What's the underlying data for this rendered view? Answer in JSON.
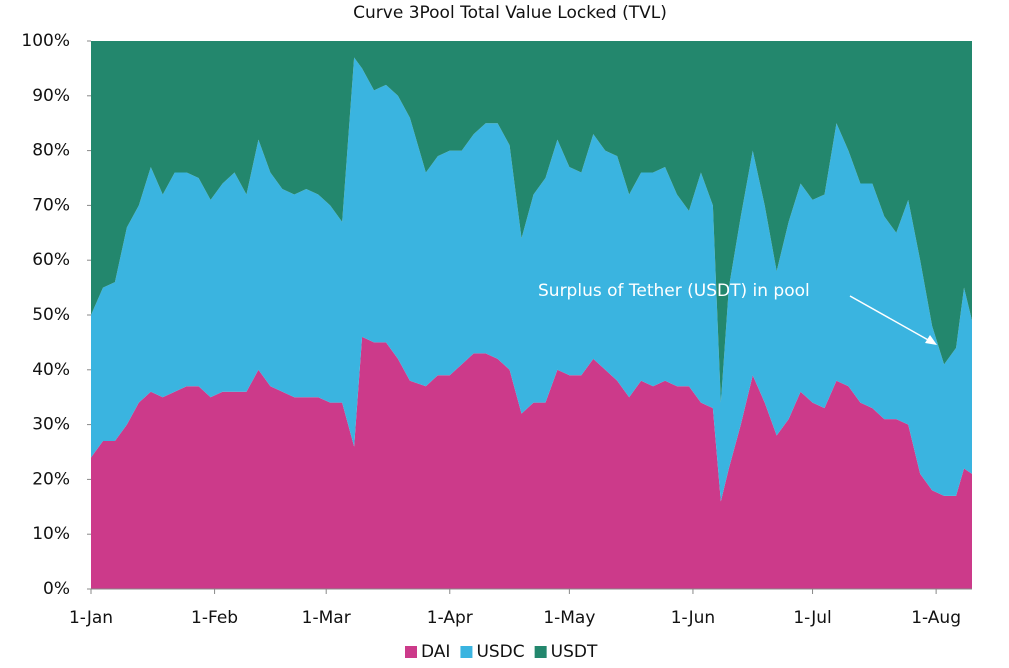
{
  "chart_data": {
    "type": "stacked_area",
    "title": "Curve 3Pool Total Value Locked (TVL)",
    "annotation": "Surplus of Tether (USDT) in pool",
    "x": [
      0,
      3,
      6,
      9,
      12,
      15,
      18,
      21,
      24,
      27,
      30,
      33,
      36,
      39,
      42,
      45,
      48,
      51,
      54,
      57,
      60,
      63,
      66,
      68,
      71,
      74,
      77,
      80,
      84,
      87,
      90,
      93,
      96,
      99,
      102,
      105,
      108,
      111,
      114,
      117,
      120,
      123,
      126,
      129,
      132,
      135,
      138,
      141,
      144,
      147,
      150,
      153,
      156,
      158,
      160,
      163,
      166,
      169,
      172,
      175,
      178,
      181,
      184,
      187,
      190,
      193,
      196,
      199,
      202,
      205,
      208,
      211,
      214,
      217,
      219,
      221
    ],
    "series": [
      {
        "name": "DAI",
        "color": "#cc3a8a",
        "values": [
          24,
          27,
          27,
          30,
          34,
          36,
          35,
          36,
          37,
          37,
          35,
          36,
          36,
          36,
          40,
          37,
          36,
          35,
          35,
          35,
          34,
          34,
          26,
          46,
          45,
          45,
          42,
          38,
          37,
          39,
          39,
          41,
          43,
          43,
          42,
          40,
          32,
          34,
          34,
          40,
          39,
          39,
          42,
          40,
          38,
          35,
          38,
          37,
          38,
          37,
          37,
          34,
          33,
          16,
          22,
          30,
          39,
          34,
          28,
          31,
          36,
          34,
          33,
          38,
          37,
          34,
          33,
          31,
          31,
          30,
          21,
          18,
          17,
          17,
          22,
          21
        ]
      },
      {
        "name": "USDC",
        "color": "#3ab4e0",
        "values": [
          26,
          28,
          29,
          36,
          36,
          41,
          37,
          40,
          39,
          38,
          36,
          38,
          40,
          36,
          42,
          39,
          37,
          37,
          38,
          37,
          36,
          33,
          71,
          49,
          46,
          47,
          48,
          48,
          39,
          40,
          41,
          39,
          40,
          42,
          43,
          41,
          32,
          38,
          41,
          42,
          38,
          37,
          41,
          40,
          41,
          37,
          38,
          39,
          39,
          35,
          32,
          42,
          37,
          18,
          33,
          38,
          41,
          36,
          30,
          36,
          38,
          37,
          39,
          47,
          43,
          40,
          41,
          37,
          34,
          41,
          39,
          30,
          24,
          27,
          33,
          28
        ]
      },
      {
        "name": "USDT",
        "color": "#23876d",
        "values": [
          50,
          45,
          44,
          34,
          30,
          23,
          28,
          24,
          24,
          25,
          29,
          26,
          24,
          28,
          18,
          24,
          27,
          28,
          27,
          28,
          30,
          33,
          3,
          5,
          9,
          8,
          10,
          14,
          24,
          21,
          20,
          20,
          17,
          15,
          15,
          19,
          36,
          28,
          25,
          18,
          23,
          24,
          17,
          20,
          21,
          28,
          24,
          24,
          23,
          28,
          31,
          24,
          30,
          66,
          45,
          32,
          20,
          30,
          42,
          33,
          26,
          29,
          28,
          15,
          20,
          26,
          26,
          32,
          35,
          29,
          40,
          52,
          59,
          56,
          45,
          51
        ]
      }
    ],
    "xlim": [
      0,
      221
    ],
    "xticks": [
      {
        "value": 0,
        "label": "1-Jan"
      },
      {
        "value": 31,
        "label": "1-Feb"
      },
      {
        "value": 59,
        "label": "1-Mar"
      },
      {
        "value": 90,
        "label": "1-Apr"
      },
      {
        "value": 120,
        "label": "1-May"
      },
      {
        "value": 151,
        "label": "1-Jun"
      },
      {
        "value": 181,
        "label": "1-Jul"
      },
      {
        "value": 212,
        "label": "1-Aug"
      }
    ],
    "ylim": [
      0,
      100
    ],
    "yticks": [
      {
        "value": 0,
        "label": "0%"
      },
      {
        "value": 10,
        "label": "10%"
      },
      {
        "value": 20,
        "label": "20%"
      },
      {
        "value": 30,
        "label": "30%"
      },
      {
        "value": 40,
        "label": "40%"
      },
      {
        "value": 50,
        "label": "50%"
      },
      {
        "value": 60,
        "label": "60%"
      },
      {
        "value": 70,
        "label": "70%"
      },
      {
        "value": 80,
        "label": "80%"
      },
      {
        "value": 90,
        "label": "90%"
      },
      {
        "value": 100,
        "label": "100%"
      }
    ],
    "legend": "bottom"
  }
}
